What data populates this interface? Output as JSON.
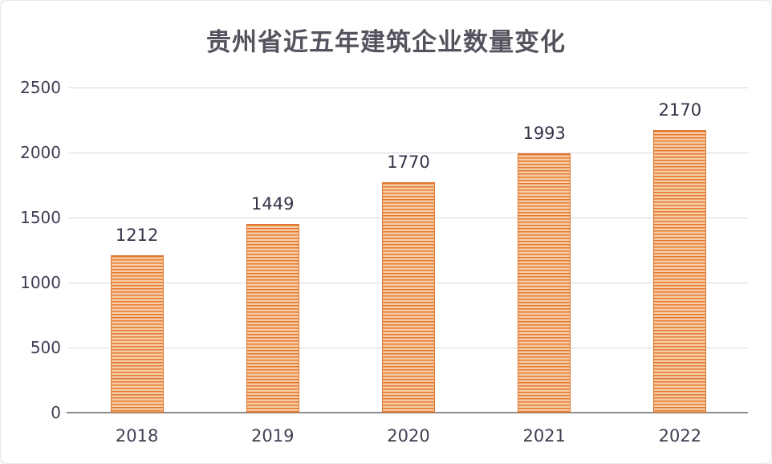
{
  "window": {
    "background": "#ffffff",
    "border_color": "#e6e8eb"
  },
  "chart_data": {
    "type": "bar",
    "title": "贵州省近五年建筑企业数量变化",
    "categories": [
      "2018",
      "2019",
      "2020",
      "2021",
      "2022"
    ],
    "values": [
      1212,
      1449,
      1770,
      1993,
      2170
    ],
    "xlabel": "",
    "ylabel": "",
    "ylim": [
      0,
      2500
    ],
    "yticks": [
      0,
      500,
      1000,
      1500,
      2000,
      2500
    ],
    "grid": "horizontal",
    "legend_position": "none",
    "data_labels_shown": true,
    "colors": {
      "bar_stripe_dark": "#e2772f",
      "bar_stripe_light": "#f8cda6",
      "bar_border": "#e2772f",
      "title_color": "#55545e",
      "tick_color": "#3f3f54",
      "label_color": "#333349",
      "grid_color": "#d9d9d9",
      "axis_color": "#8c8c8c"
    }
  }
}
